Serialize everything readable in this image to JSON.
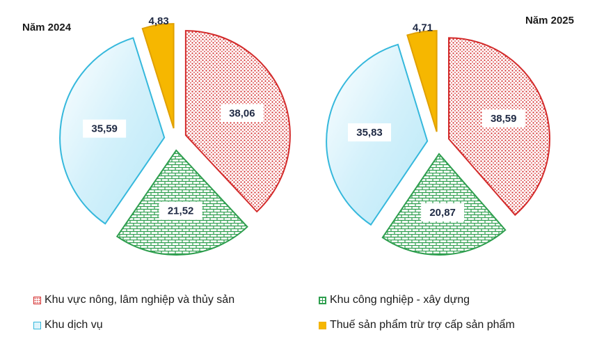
{
  "chart_data": [
    {
      "type": "pie",
      "title": "Năm 2024",
      "categories": [
        "Khu vực nông, lâm nghiệp và thủy sản",
        "Khu công nghiệp - xây dựng",
        "Khu dịch vụ",
        "Thuế sản phẩm trừ trợ cấp sản phẩm"
      ],
      "values": [
        38.06,
        21.52,
        35.59,
        4.83
      ],
      "labels": [
        "38,06",
        "21,52",
        "35,59",
        "4,83"
      ]
    },
    {
      "type": "pie",
      "title": "Năm 2025",
      "categories": [
        "Khu vực nông, lâm nghiệp và thủy sản",
        "Khu công nghiệp - xây dựng",
        "Khu dịch vụ",
        "Thuế sản phẩm trừ trợ cấp sản phẩm"
      ],
      "values": [
        38.59,
        20.87,
        35.83,
        4.71
      ],
      "labels": [
        "38,59",
        "20,87",
        "35,83",
        "4,71"
      ]
    }
  ],
  "legend": {
    "placement": "bottom",
    "items": [
      {
        "label": "Khu vực nông, lâm nghiệp và thủy sản"
      },
      {
        "label": "Khu công nghiệp - xây dựng"
      },
      {
        "label": "Khu dịch vụ"
      },
      {
        "label": "Thuế sản phẩm trừ trợ cấp sản phẩm"
      }
    ]
  },
  "colors": {
    "agriculture": "#d32a2a",
    "industry": "#2e9e4e",
    "services": "#35b8dc",
    "tax": "#f6b700"
  }
}
